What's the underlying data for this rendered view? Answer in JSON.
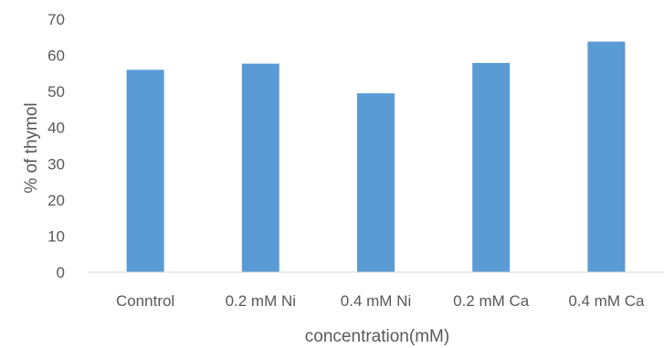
{
  "chart_data": {
    "type": "bar",
    "title": "",
    "xlabel": "concentration(mM)",
    "ylabel": "% of thymol",
    "categories": [
      "Conntrol",
      "0.2 mM Ni",
      "0.4 mM Ni",
      "0.2 mM Ca",
      "0.4 mM Ca"
    ],
    "values": [
      56,
      57.7,
      49.5,
      57.9,
      63.8
    ],
    "ylim": [
      0,
      70
    ],
    "yticks": [
      "0",
      "10",
      "20",
      "30",
      "40",
      "50",
      "60",
      "70"
    ],
    "grid": false,
    "legend": "none",
    "bar_color": "#5B9BD5",
    "axis_color": "#D9D9D9",
    "text_color": "#595959"
  }
}
